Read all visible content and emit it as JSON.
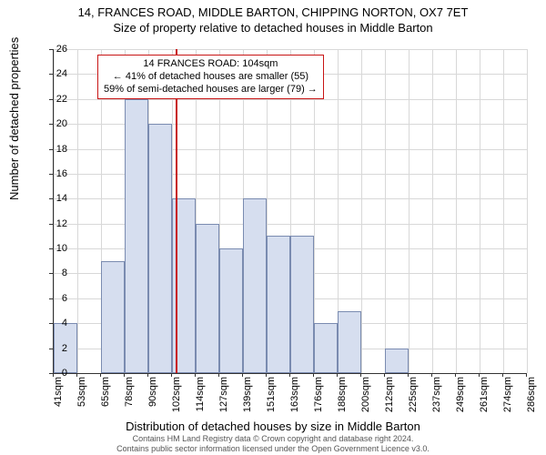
{
  "title_line1": "14, FRANCES ROAD, MIDDLE BARTON, CHIPPING NORTON, OX7 7ET",
  "title_line2": "Size of property relative to detached houses in Middle Barton",
  "ylabel": "Number of detached properties",
  "xlabel": "Distribution of detached houses by size in Middle Barton",
  "footer_line1": "Contains HM Land Registry data © Crown copyright and database right 2024.",
  "footer_line2": "Contains public sector information licensed under the Open Government Licence v3.0.",
  "annotation_line1": "14 FRANCES ROAD: 104sqm",
  "annotation_line2": "← 41% of detached houses are smaller (55)",
  "annotation_line3": "59% of semi-detached houses are larger (79) →",
  "chart": {
    "type": "histogram",
    "ylim": [
      0,
      26
    ],
    "ytick_step": 2,
    "y_ticks": [
      0,
      2,
      4,
      6,
      8,
      10,
      12,
      14,
      16,
      18,
      20,
      22,
      24,
      26
    ],
    "x_ticks": [
      "41sqm",
      "53sqm",
      "65sqm",
      "78sqm",
      "90sqm",
      "102sqm",
      "114sqm",
      "127sqm",
      "139sqm",
      "151sqm",
      "163sqm",
      "176sqm",
      "188sqm",
      "200sqm",
      "212sqm",
      "225sqm",
      "237sqm",
      "249sqm",
      "261sqm",
      "274sqm",
      "286sqm"
    ],
    "x_min": 41,
    "x_max": 286,
    "bin_width": 12.25,
    "bars": [
      {
        "x": 41,
        "h": 4
      },
      {
        "x": 53.25,
        "h": 0
      },
      {
        "x": 65.5,
        "h": 9
      },
      {
        "x": 77.75,
        "h": 22
      },
      {
        "x": 90,
        "h": 20
      },
      {
        "x": 102.25,
        "h": 14
      },
      {
        "x": 114.5,
        "h": 12
      },
      {
        "x": 126.75,
        "h": 10
      },
      {
        "x": 139,
        "h": 14
      },
      {
        "x": 151.25,
        "h": 11
      },
      {
        "x": 163.5,
        "h": 11
      },
      {
        "x": 175.75,
        "h": 4
      },
      {
        "x": 188,
        "h": 5
      },
      {
        "x": 200.25,
        "h": 0
      },
      {
        "x": 212.5,
        "h": 2
      },
      {
        "x": 224.75,
        "h": 0
      },
      {
        "x": 237,
        "h": 0
      },
      {
        "x": 249.25,
        "h": 0
      },
      {
        "x": 261.5,
        "h": 0
      },
      {
        "x": 273.75,
        "h": 0
      }
    ],
    "ref_x": 104,
    "bar_fill": "#d6deef",
    "bar_stroke": "#7a8bb0",
    "ref_color": "#c81414",
    "grid_color": "#d8d8d8",
    "background_color": "#ffffff",
    "title_fontsize": 13,
    "label_fontsize": 13,
    "tick_fontsize": 11
  }
}
